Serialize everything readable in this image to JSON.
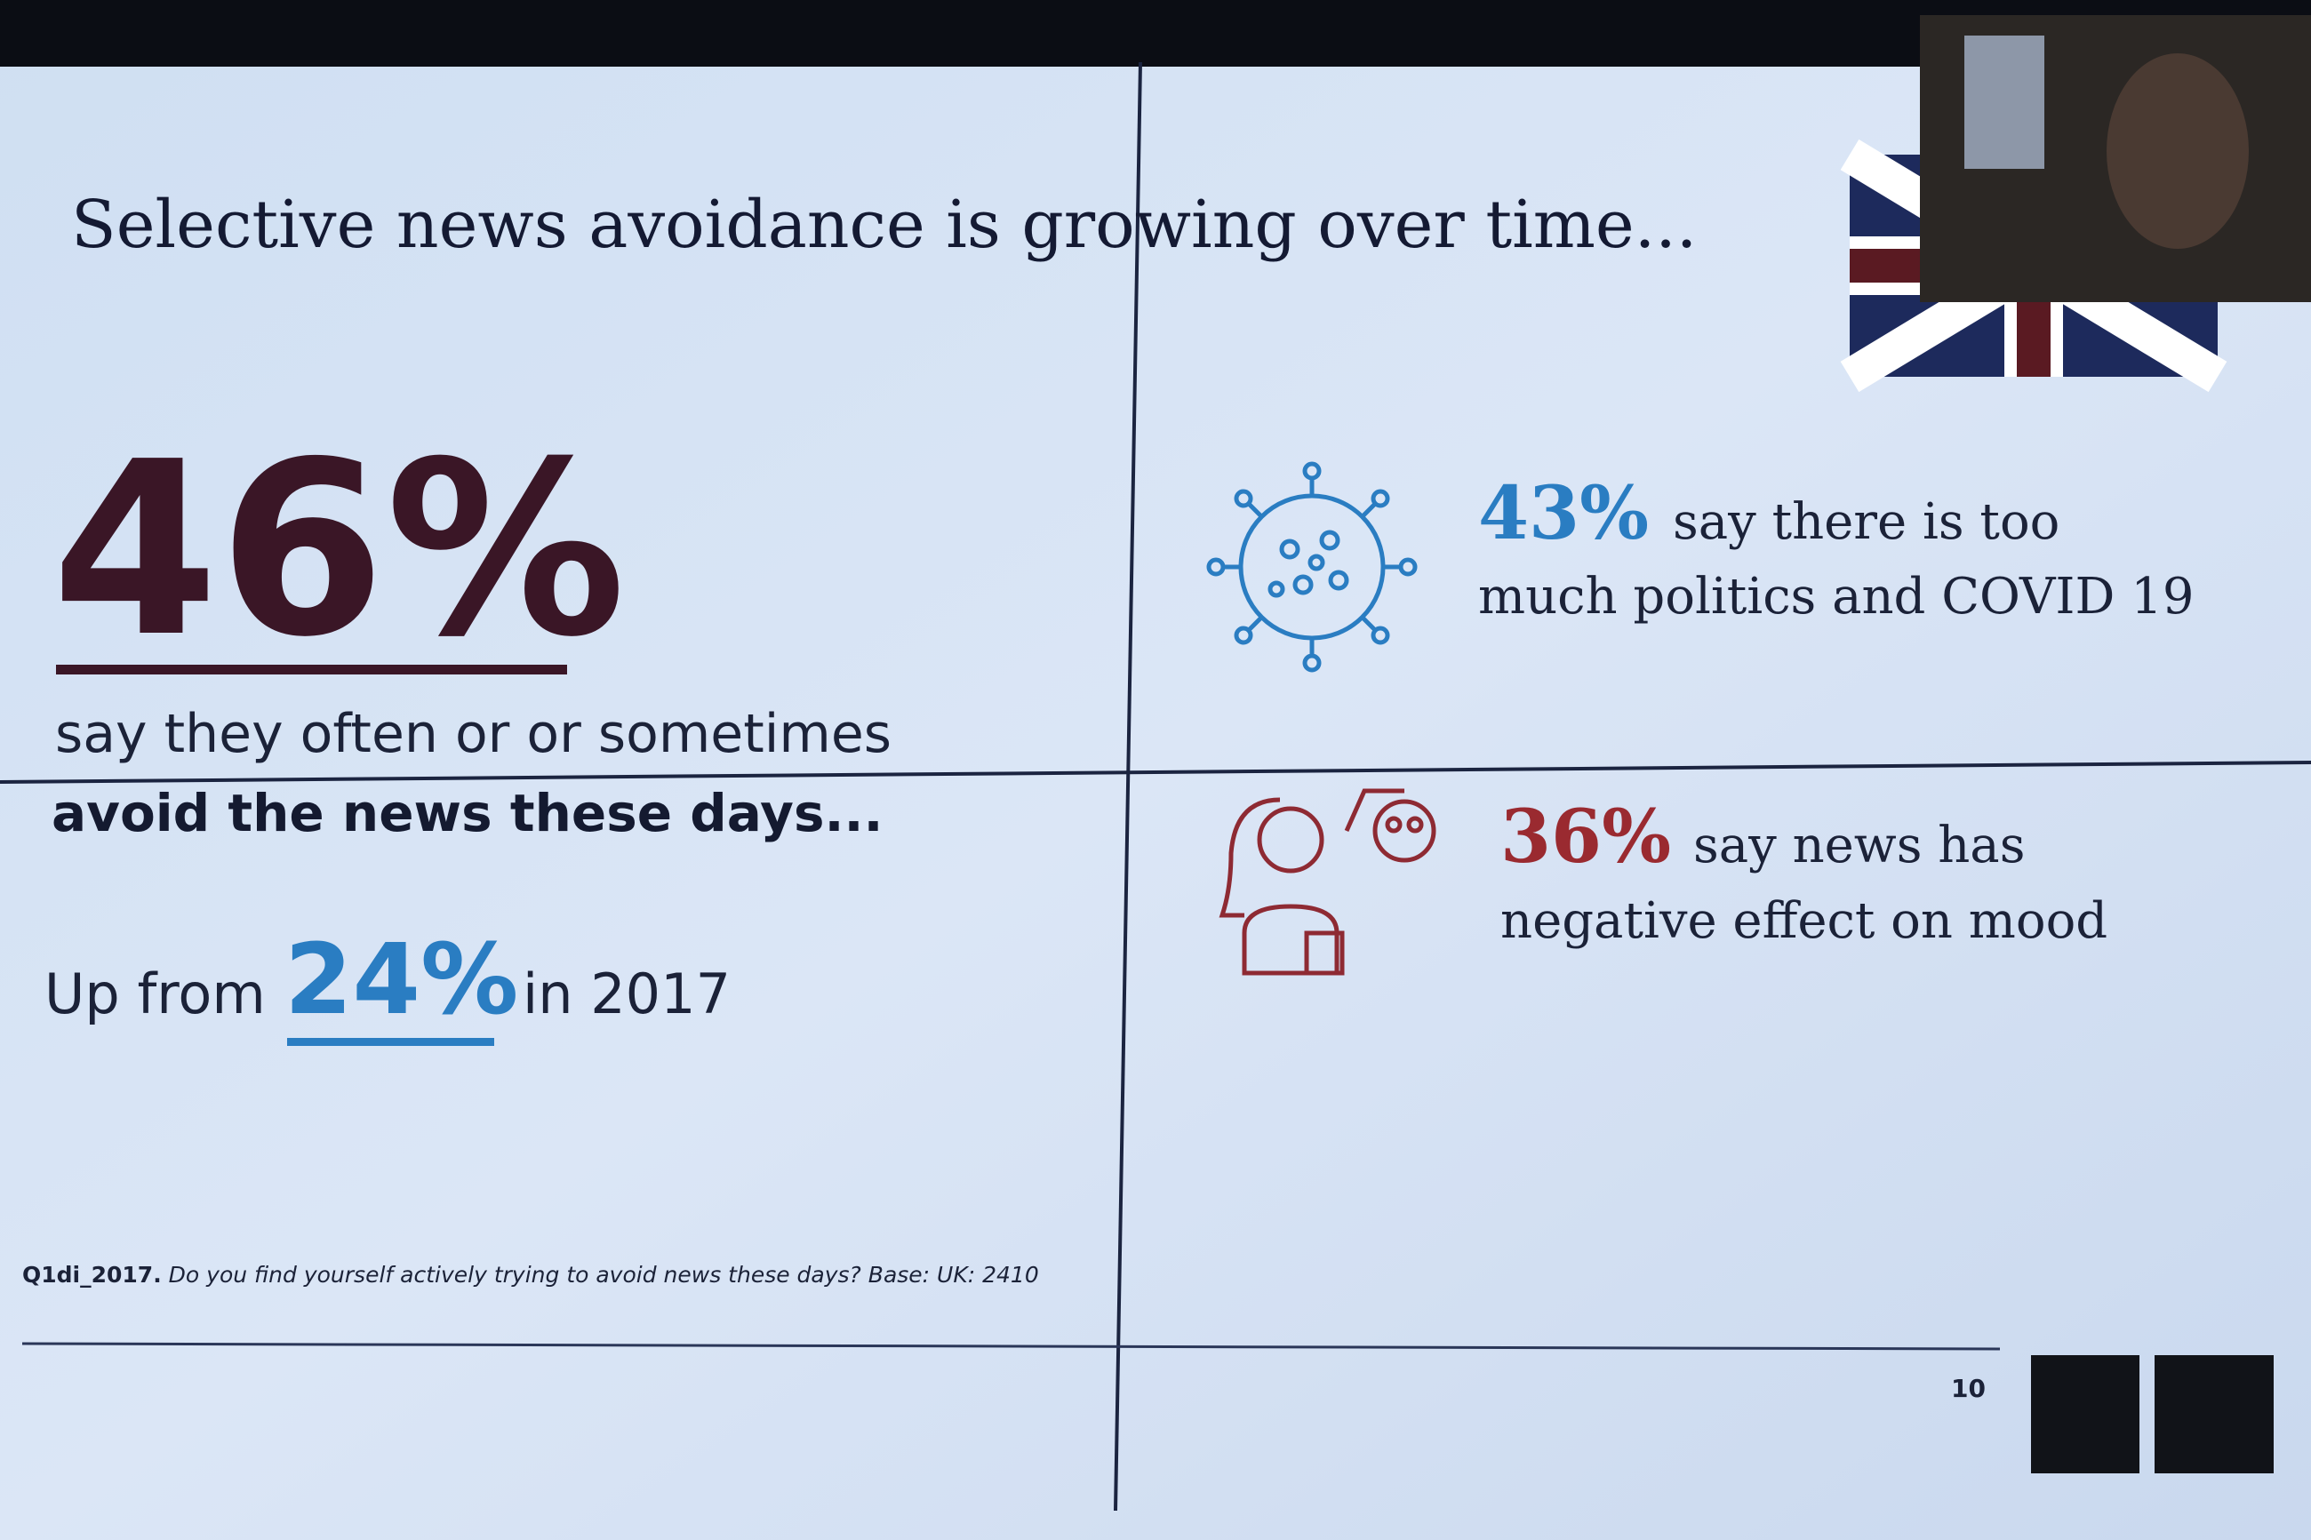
{
  "header": {
    "title": "Selective news avoidance is growing over time..."
  },
  "left": {
    "headline_stat": "46%",
    "headline_line1": "say they often or or sometimes",
    "headline_line2": "avoid the news these days...",
    "comparison": {
      "prefix": "Up from",
      "stat": "24%",
      "suffix": "in 2017"
    }
  },
  "right": {
    "items": [
      {
        "stat": "43%",
        "line1": "say there is too",
        "line2": "much politics and COVID 19"
      },
      {
        "stat": "36%",
        "line1": "say news has",
        "line2": "negative effect on mood"
      }
    ]
  },
  "footnote": {
    "code": "Q1di_2017.",
    "question": "Do you find yourself actively trying to avoid news these days?",
    "base": "Base: UK: 2410"
  },
  "page_number": "10"
}
